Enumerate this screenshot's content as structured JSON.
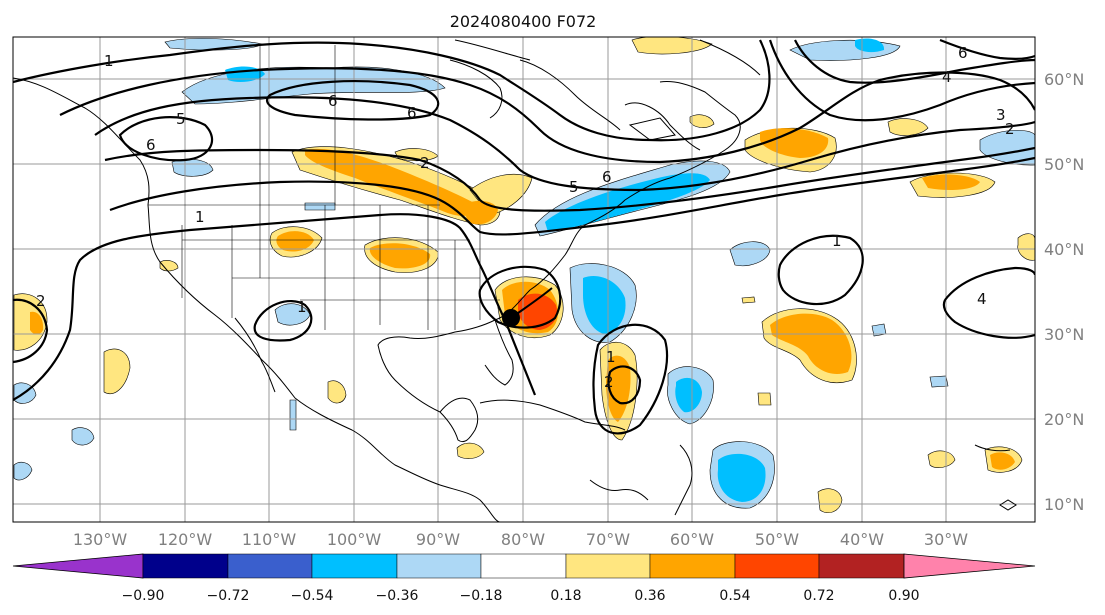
{
  "title": "2024080400 F072",
  "lon_labels": [
    "130°W",
    "120°W",
    "110°W",
    "100°W",
    "90°W",
    "80°W",
    "70°W",
    "60°W",
    "50°W",
    "40°W",
    "30°W"
  ],
  "lat_labels": [
    "60°N",
    "50°N",
    "40°N",
    "30°N",
    "20°N",
    "10°N"
  ],
  "colorbar": {
    "ticks": [
      "−0.90",
      "−0.72",
      "−0.54",
      "−0.36",
      "−0.18",
      "0.18",
      "0.36",
      "0.54",
      "0.72",
      "0.90"
    ],
    "colors": [
      "#9933cc",
      "#00008b",
      "#3a5fcd",
      "#00bfff",
      "#add8f5",
      "#ffffff",
      "#ffe680",
      "#ffa500",
      "#ff4500",
      "#b22222",
      "#ff82ab"
    ]
  },
  "contour_labels": [
    "1",
    "1",
    "1",
    "1",
    "1",
    "2",
    "2",
    "2",
    "2",
    "3",
    "4",
    "4",
    "5",
    "5",
    "6",
    "6",
    "6",
    "6",
    "6"
  ],
  "marker": "storm-center"
}
